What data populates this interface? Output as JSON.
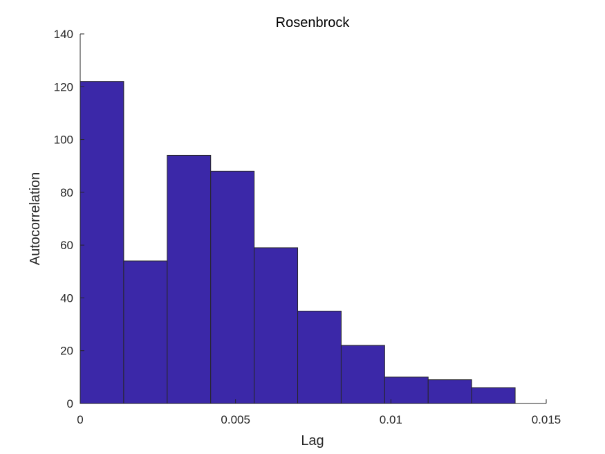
{
  "chart_data": {
    "type": "histogram",
    "title": "Rosenbrock",
    "xlabel": "Lag",
    "ylabel": "Autocorrelation",
    "xlim": [
      0,
      0.015
    ],
    "ylim": [
      0,
      140
    ],
    "xticks": [
      0,
      0.005,
      0.01,
      0.015
    ],
    "xtick_labels": [
      "0",
      "0.005",
      "0.01",
      "0.015"
    ],
    "yticks": [
      0,
      20,
      40,
      60,
      80,
      100,
      120,
      140
    ],
    "ytick_labels": [
      "0",
      "20",
      "40",
      "60",
      "80",
      "100",
      "120",
      "140"
    ],
    "bin_edges": [
      0,
      0.0014,
      0.0028,
      0.0042,
      0.0056,
      0.007,
      0.0084,
      0.0098,
      0.0112,
      0.0126,
      0.014
    ],
    "values": [
      122,
      54,
      94,
      88,
      59,
      35,
      22,
      10,
      9,
      6
    ],
    "bar_color": "#3b28a8",
    "edge_color": "#262626",
    "grid": false
  }
}
